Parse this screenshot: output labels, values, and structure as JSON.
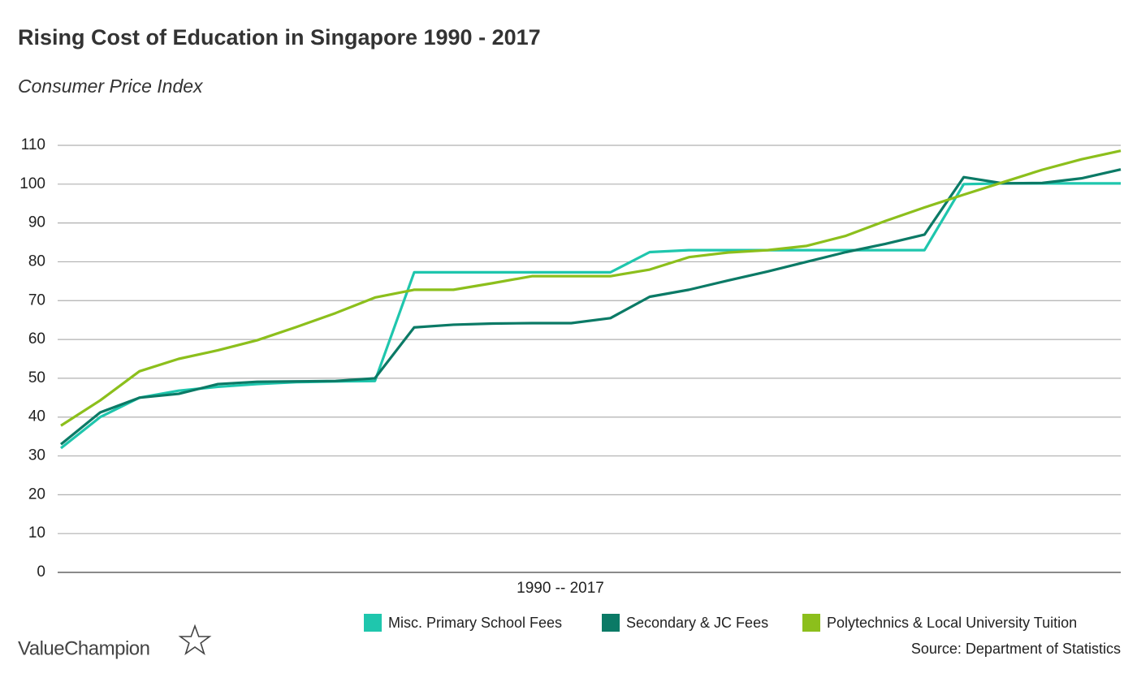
{
  "chart_data": {
    "type": "line",
    "title": "Rising Cost of Education in Singapore 1990 - 2017",
    "subtitle": "Consumer Price Index",
    "xlabel": "1990 -- 2017",
    "source": "Source: Department of Statistics",
    "brand": "ValueChampion",
    "categories": [
      null,
      null,
      null,
      null,
      null,
      null,
      null,
      null,
      null,
      null,
      null,
      null,
      null,
      null,
      null,
      null,
      null,
      null,
      null,
      null,
      null,
      null,
      null,
      null,
      null,
      null,
      null,
      null
    ],
    "ylim": [
      0,
      110
    ],
    "yticks": [
      0,
      10,
      20,
      30,
      40,
      50,
      60,
      70,
      80,
      90,
      100,
      110
    ],
    "grid": true,
    "legend": "bottom-right",
    "series": [
      {
        "name": "Misc. Primary School Fees",
        "color": "#1fc6ad",
        "values": [
          32,
          40,
          45,
          46.8,
          47.8,
          48.5,
          49,
          49.2,
          49.3,
          77.3,
          77.3,
          77.3,
          77.3,
          77.3,
          77.3,
          82.5,
          83,
          83,
          83,
          83,
          83,
          83,
          83,
          100,
          100.2,
          100.2,
          100.2,
          100.2
        ]
      },
      {
        "name": "Secondary & JC Fees",
        "color": "#0b7a66",
        "values": [
          33,
          41.2,
          45,
          46,
          48.5,
          49.1,
          49.2,
          49.3,
          50,
          63.1,
          63.8,
          64.1,
          64.2,
          64.2,
          65.5,
          71,
          72.8,
          75.2,
          77.5,
          80,
          82.5,
          84.6,
          87,
          101.8,
          100.2,
          100.3,
          101.5,
          103.8
        ]
      },
      {
        "name": "Polytechnics & Local University Tuition",
        "color": "#8cbf1c",
        "values": [
          37.8,
          44.3,
          51.8,
          55,
          57.2,
          59.8,
          63.2,
          66.8,
          70.8,
          72.8,
          72.8,
          74.5,
          76.3,
          76.3,
          76.3,
          78,
          81.2,
          82.4,
          83,
          84.1,
          86.7,
          90.5,
          94,
          97.3,
          100.5,
          103.7,
          106.4,
          108.6
        ]
      }
    ]
  }
}
